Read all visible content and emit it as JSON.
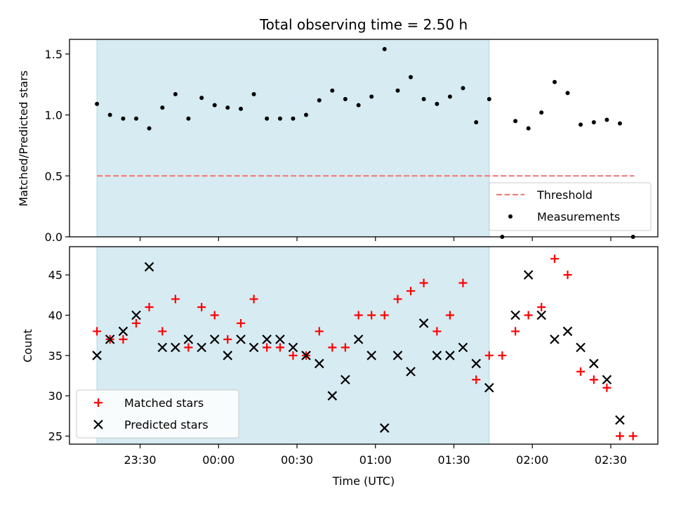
{
  "figure": {
    "title": "Total observing time = 2.50 h"
  },
  "chart_data": [
    {
      "type": "scatter",
      "xlabel": "",
      "ylabel": "Matched/Predicted stars",
      "x_tick_labels": [
        "23:30",
        "00:00",
        "00:30",
        "01:00",
        "01:30",
        "02:00",
        "02:30"
      ],
      "x_tick_hours": [
        -0.5,
        0,
        0.5,
        1,
        1.5,
        2,
        2.5
      ],
      "xlim_hours": [
        -0.95,
        2.8
      ],
      "ylim": [
        0,
        1.62
      ],
      "yticks": [
        0.0,
        0.5,
        1.0,
        1.5
      ],
      "ytick_labels": [
        "0.0",
        "0.5",
        "1.0",
        "1.5"
      ],
      "shaded_region_hours": [
        -0.775,
        1.725
      ],
      "threshold": {
        "y": 0.5,
        "x_hours": [
          -0.775,
          2.65
        ],
        "label": "Threshold",
        "color": "#f08080"
      },
      "legend": {
        "position": "lower right",
        "entries": [
          "Threshold",
          "Measurements"
        ]
      },
      "series": [
        {
          "name": "Measurements",
          "color": "#000000",
          "x_hours": [
            -0.775,
            -0.692,
            -0.608,
            -0.525,
            -0.442,
            -0.358,
            -0.275,
            -0.192,
            -0.108,
            -0.025,
            0.058,
            0.142,
            0.225,
            0.308,
            0.392,
            0.475,
            0.558,
            0.642,
            0.725,
            0.808,
            0.892,
            0.975,
            1.058,
            1.142,
            1.225,
            1.308,
            1.392,
            1.475,
            1.558,
            1.642,
            1.725,
            1.808,
            1.892,
            1.975,
            2.058,
            2.142,
            2.225,
            2.308,
            2.392,
            2.475,
            2.558,
            2.642
          ],
          "y": [
            1.09,
            1.0,
            0.97,
            0.97,
            0.89,
            1.06,
            1.17,
            0.97,
            1.14,
            1.08,
            1.06,
            1.05,
            1.17,
            0.97,
            0.97,
            0.97,
            1.0,
            1.12,
            1.2,
            1.13,
            1.08,
            1.15,
            1.54,
            1.2,
            1.31,
            1.13,
            1.09,
            1.15,
            1.22,
            0.94,
            1.13,
            0.0,
            0.95,
            0.89,
            1.02,
            1.27,
            1.18,
            0.92,
            0.94,
            0.96,
            0.93,
            0.0
          ]
        }
      ]
    },
    {
      "type": "scatter",
      "xlabel": "Time (UTC)",
      "ylabel": "Count",
      "x_tick_labels": [
        "23:30",
        "00:00",
        "00:30",
        "01:00",
        "01:30",
        "02:00",
        "02:30"
      ],
      "x_tick_hours": [
        -0.5,
        0,
        0.5,
        1,
        1.5,
        2,
        2.5
      ],
      "xlim_hours": [
        -0.95,
        2.8
      ],
      "ylim": [
        24.0,
        48.5
      ],
      "yticks": [
        25,
        30,
        35,
        40,
        45
      ],
      "ytick_labels": [
        "25",
        "30",
        "35",
        "40",
        "45"
      ],
      "shaded_region_hours": [
        -0.775,
        1.725
      ],
      "legend": {
        "position": "lower left",
        "entries": [
          "Matched stars",
          "Predicted stars"
        ]
      },
      "series": [
        {
          "name": "Matched stars",
          "marker": "+",
          "color": "#ff0000",
          "x_hours": [
            -0.775,
            -0.692,
            -0.608,
            -0.525,
            -0.442,
            -0.358,
            -0.275,
            -0.192,
            -0.108,
            -0.025,
            0.058,
            0.142,
            0.225,
            0.308,
            0.392,
            0.475,
            0.558,
            0.642,
            0.725,
            0.808,
            0.892,
            0.975,
            1.058,
            1.142,
            1.225,
            1.308,
            1.392,
            1.475,
            1.558,
            1.642,
            1.725,
            1.808,
            1.892,
            1.975,
            2.058,
            2.142,
            2.225,
            2.308,
            2.392,
            2.475,
            2.558,
            2.642
          ],
          "y": [
            38,
            37,
            37,
            39,
            41,
            38,
            42,
            36,
            41,
            40,
            37,
            39,
            42,
            36,
            36,
            35,
            35,
            38,
            36,
            36,
            40,
            40,
            40,
            42,
            43,
            44,
            38,
            40,
            44,
            32,
            35,
            35,
            38,
            40,
            41,
            47,
            45,
            33,
            32,
            31,
            25,
            25
          ]
        },
        {
          "name": "Predicted stars",
          "marker": "x",
          "color": "#000000",
          "x_hours": [
            -0.775,
            -0.692,
            -0.608,
            -0.525,
            -0.442,
            -0.358,
            -0.275,
            -0.192,
            -0.108,
            -0.025,
            0.058,
            0.142,
            0.225,
            0.308,
            0.392,
            0.475,
            0.558,
            0.642,
            0.725,
            0.808,
            0.892,
            0.975,
            1.058,
            1.142,
            1.225,
            1.308,
            1.392,
            1.475,
            1.558,
            1.642,
            1.725,
            1.892,
            1.975,
            2.058,
            2.142,
            2.225,
            2.308,
            2.392,
            2.475,
            2.558
          ],
          "y": [
            35,
            37,
            38,
            40,
            46,
            36,
            36,
            37,
            36,
            37,
            35,
            37,
            36,
            37,
            37,
            36,
            35,
            34,
            30,
            32,
            37,
            35,
            26,
            35,
            33,
            39,
            35,
            35,
            36,
            34,
            31,
            40,
            45,
            40,
            37,
            38,
            36,
            34,
            32,
            27
          ]
        }
      ]
    }
  ]
}
